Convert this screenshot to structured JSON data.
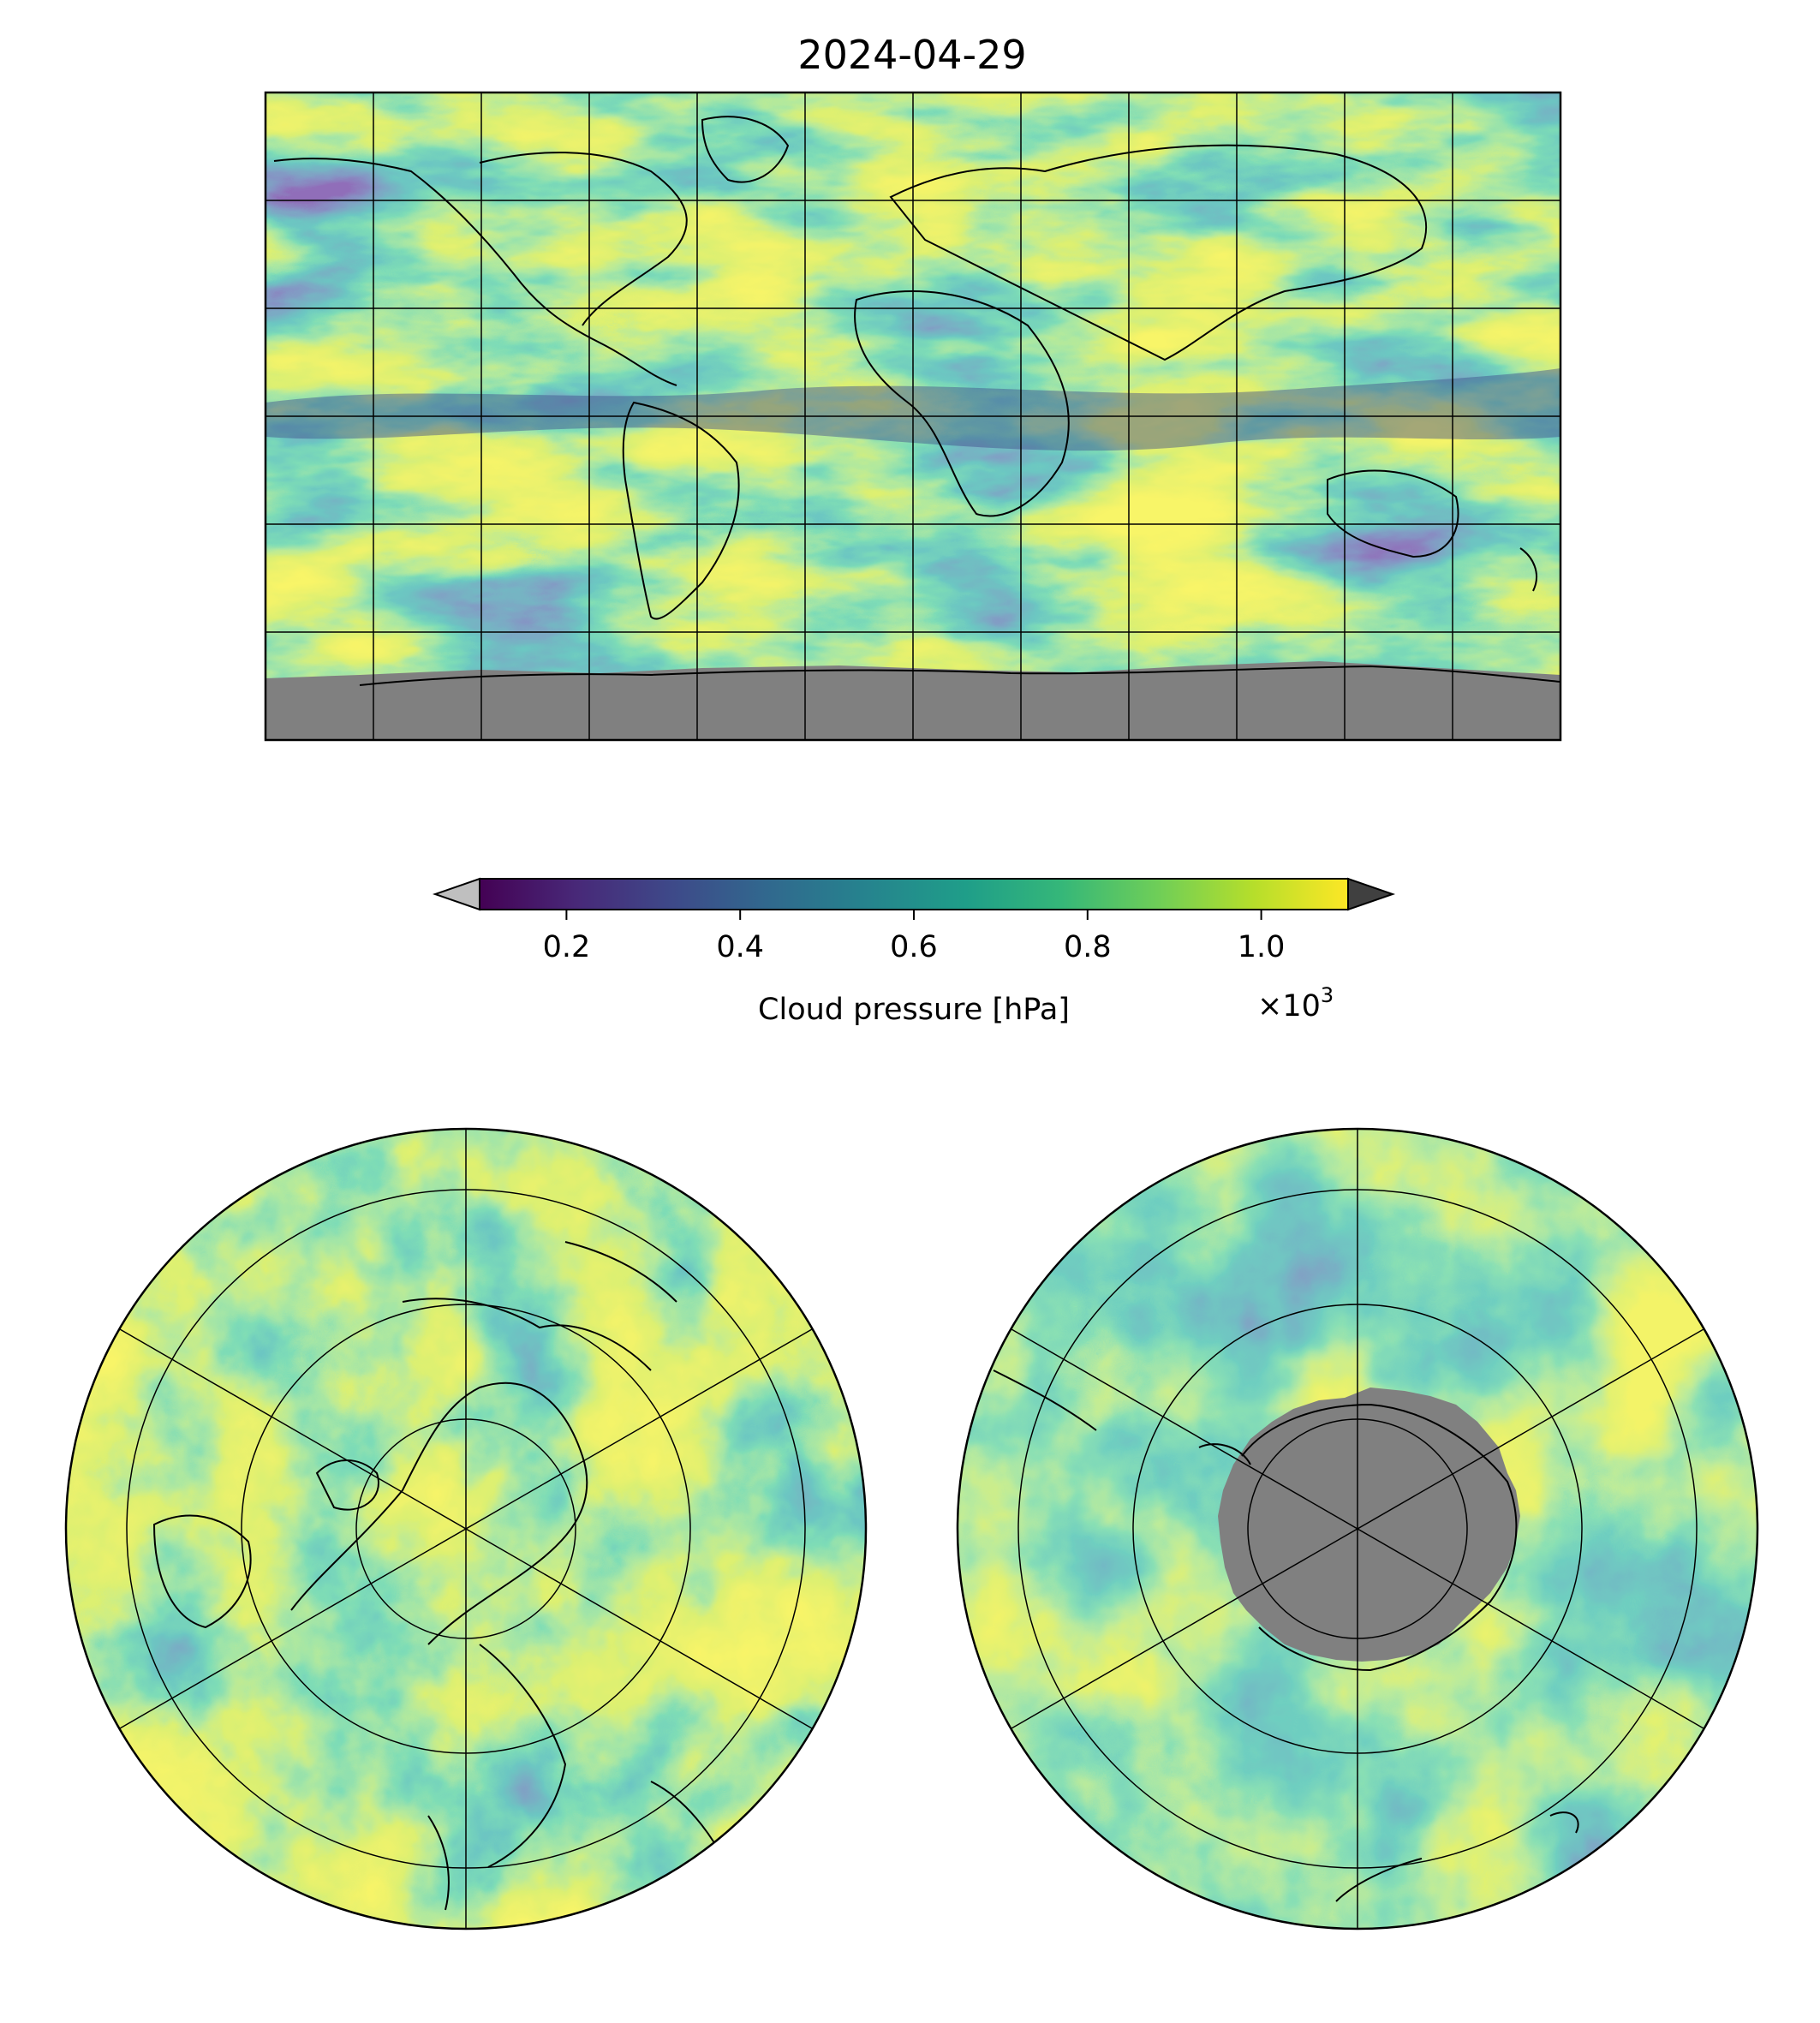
{
  "title": "2024-04-29",
  "colorbar": {
    "label": "Cloud pressure [hPa]",
    "multiplier_base": "×10",
    "multiplier_exp": "3",
    "ticks": [
      {
        "value": 200,
        "label": "0.2"
      },
      {
        "value": 400,
        "label": "0.4"
      },
      {
        "value": 600,
        "label": "0.6"
      },
      {
        "value": 800,
        "label": "0.8"
      },
      {
        "value": 1000,
        "label": "1.0"
      }
    ],
    "vmin": 100,
    "vmax": 1100,
    "under_color": "#bfbfbf",
    "over_color": "#404040",
    "colormap": "viridis",
    "colormap_stops": [
      "#440154",
      "#482878",
      "#3e4989",
      "#31688e",
      "#26828e",
      "#1f9e89",
      "#35b779",
      "#6ece58",
      "#b5de2b",
      "#fde725"
    ]
  },
  "maps": [
    {
      "name": "global",
      "projection": "equirectangular",
      "missing_color": "#808080"
    },
    {
      "name": "north-polar",
      "projection": "north polar stereographic",
      "missing_color": "#808080"
    },
    {
      "name": "south-polar",
      "projection": "south polar stereographic",
      "missing_color": "#808080"
    }
  ]
}
